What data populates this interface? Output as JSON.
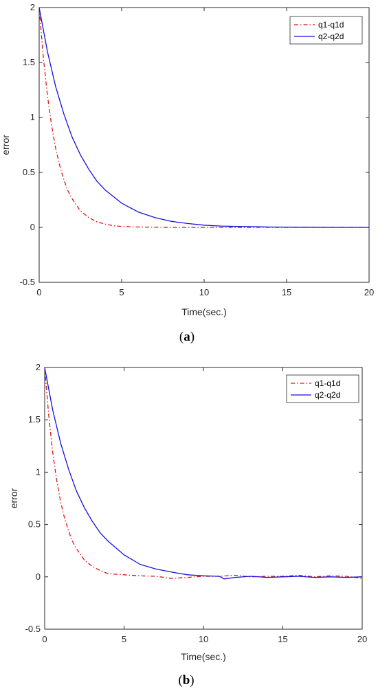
{
  "chart_data": [
    {
      "type": "line",
      "panel": "a",
      "caption": "(a)",
      "xlabel": "Time(sec.)",
      "ylabel": "error",
      "xlim": [
        0,
        20
      ],
      "ylim": [
        -0.5,
        2
      ],
      "xticks": [
        "0",
        "5",
        "10",
        "15",
        "20"
      ],
      "yticks": [
        "-0.5",
        "0",
        "0.5",
        "1",
        "1.5",
        "2"
      ],
      "legend_position": "top-right",
      "series": [
        {
          "name": "q1-q1d",
          "color": "#e01010",
          "style": "dashdot",
          "x": [
            0,
            0.25,
            0.5,
            0.75,
            1,
            1.25,
            1.5,
            1.75,
            2,
            2.5,
            3,
            3.5,
            4,
            4.5,
            5,
            6,
            7,
            8,
            10,
            12,
            15,
            20
          ],
          "y": [
            2,
            1.55,
            1.2,
            0.93,
            0.72,
            0.56,
            0.43,
            0.33,
            0.26,
            0.15,
            0.09,
            0.05,
            0.03,
            0.015,
            0.008,
            0.003,
            0.001,
            0,
            0,
            0,
            0,
            0
          ]
        },
        {
          "name": "q2-q2d",
          "color": "#1010e0",
          "style": "solid",
          "x": [
            0,
            0.5,
            1,
            1.5,
            2,
            2.5,
            3,
            3.5,
            4,
            5,
            6,
            7,
            8,
            9,
            10,
            11,
            12,
            14,
            16,
            18,
            20
          ],
          "y": [
            2,
            1.6,
            1.28,
            1.03,
            0.82,
            0.66,
            0.53,
            0.42,
            0.34,
            0.22,
            0.14,
            0.09,
            0.055,
            0.035,
            0.02,
            0.012,
            0.008,
            0.003,
            0.001,
            0,
            0
          ]
        }
      ]
    },
    {
      "type": "line",
      "panel": "b",
      "caption": "(b)",
      "xlabel": "Time(sec.)",
      "ylabel": "error",
      "xlim": [
        0,
        20
      ],
      "ylim": [
        -0.5,
        2
      ],
      "xticks": [
        "0",
        "5",
        "10",
        "15",
        "20"
      ],
      "yticks": [
        "-0.5",
        "0",
        "0.5",
        "1",
        "1.5",
        "2"
      ],
      "legend_position": "top-right",
      "series": [
        {
          "name": "q1-q1d",
          "color": "#e01010",
          "style": "dashdot",
          "x": [
            0,
            0.25,
            0.5,
            0.75,
            1,
            1.25,
            1.5,
            1.75,
            2,
            2.5,
            3,
            3.5,
            4,
            4.5,
            5,
            6,
            7,
            8,
            8.5,
            9,
            10,
            11,
            12,
            13,
            14,
            15,
            16,
            17,
            18,
            19,
            20
          ],
          "y": [
            2,
            1.55,
            1.2,
            0.93,
            0.72,
            0.56,
            0.44,
            0.34,
            0.27,
            0.16,
            0.1,
            0.06,
            0.03,
            0.025,
            0.02,
            0.01,
            0.005,
            -0.015,
            -0.01,
            -0.005,
            0.005,
            0.005,
            0.015,
            0.0,
            0.005,
            0.005,
            0.015,
            0.0,
            0.01,
            0.005,
            -0.015
          ]
        },
        {
          "name": "q2-q2d",
          "color": "#1010e0",
          "style": "solid",
          "x": [
            0,
            0.5,
            1,
            1.5,
            2,
            2.5,
            3,
            3.5,
            4,
            5,
            6,
            7,
            8,
            9,
            10,
            11,
            11.3,
            12,
            13,
            14,
            15,
            16,
            17,
            18,
            19,
            20
          ],
          "y": [
            2,
            1.6,
            1.28,
            1.03,
            0.82,
            0.66,
            0.53,
            0.42,
            0.34,
            0.21,
            0.12,
            0.075,
            0.045,
            0.02,
            0.01,
            0.005,
            -0.02,
            -0.005,
            0.005,
            -0.005,
            0.0,
            0.005,
            -0.005,
            0.0,
            -0.005,
            0.0
          ]
        }
      ]
    }
  ]
}
